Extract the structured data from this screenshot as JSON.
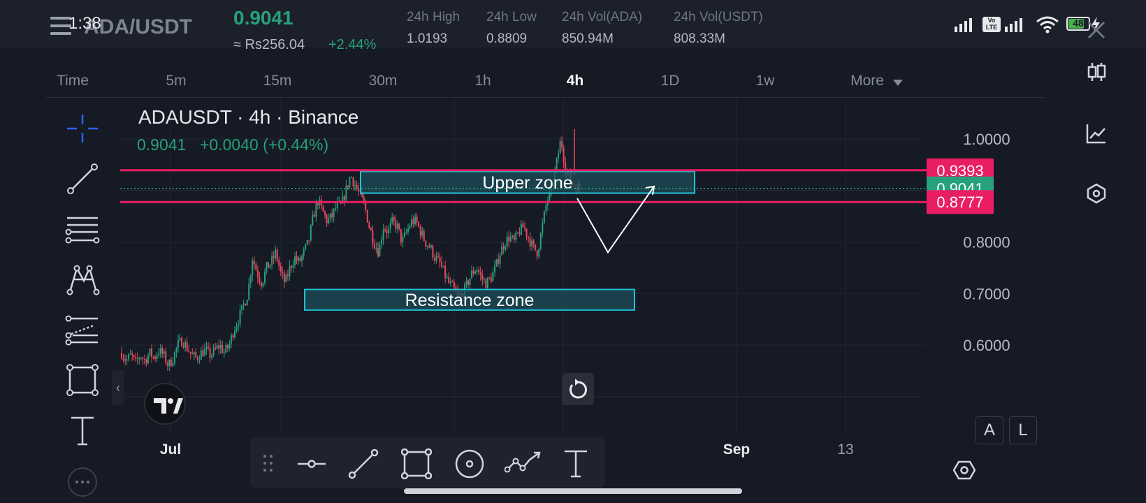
{
  "status_bar": {
    "time": "1:38",
    "battery": "48"
  },
  "ticker": {
    "pair": "ADA/USDT",
    "last_price": "0.9041",
    "fiat_price": "≈ Rs256.04",
    "change_pct": "+2.44%",
    "stats": [
      {
        "label": "24h High",
        "value": "1.0193"
      },
      {
        "label": "24h Low",
        "value": "0.8809"
      },
      {
        "label": "24h Vol(ADA)",
        "value": "850.94M"
      },
      {
        "label": "24h Vol(USDT)",
        "value": "808.33M"
      }
    ]
  },
  "timeframes": [
    "Time",
    "5m",
    "15m",
    "30m",
    "1h",
    "4h",
    "1D",
    "1w",
    "More"
  ],
  "active_timeframe": "4h",
  "chart_header": {
    "title": "ADAUSDT · 4h · Binance",
    "price": "0.9041",
    "change": "+0.0040 (+0.44%)"
  },
  "chart_data": {
    "type": "candlestick",
    "title": "ADAUSDT · 4h · Binance",
    "y_ticks": [
      "1.0000",
      "0.8000",
      "0.7000",
      "0.6000"
    ],
    "y_tick_values": [
      1.0,
      0.8,
      0.7,
      0.6
    ],
    "ylim": [
      0.49,
      1.03
    ],
    "x_ticks": [
      {
        "label": "Jul",
        "bold": true
      },
      {
        "label": "Sep",
        "bold": true
      },
      {
        "label": "13",
        "bold": false
      }
    ],
    "price_labels": [
      {
        "value": 0.9393,
        "text": "0.9393",
        "color": "#e91e63"
      },
      {
        "value": 0.9041,
        "text": "0.9041",
        "color": "#26a17b"
      },
      {
        "value": 0.8777,
        "text": "0.8777",
        "color": "#e91e63"
      }
    ],
    "horizontal_lines": [
      0.9393,
      0.8777
    ],
    "current_price_line": 0.9041,
    "zones": [
      {
        "label": "Upper zone",
        "low": 0.895,
        "high": 0.937
      },
      {
        "label": "Resistance zone",
        "low": 0.668,
        "high": 0.708
      }
    ],
    "close_path": [
      0.585,
      0.57,
      0.58,
      0.565,
      0.58,
      0.57,
      0.585,
      0.575,
      0.59,
      0.58,
      0.56,
      0.575,
      0.6,
      0.61,
      0.595,
      0.58,
      0.575,
      0.585,
      0.59,
      0.58,
      0.59,
      0.6,
      0.585,
      0.6,
      0.63,
      0.65,
      0.675,
      0.7,
      0.77,
      0.74,
      0.72,
      0.75,
      0.76,
      0.78,
      0.74,
      0.72,
      0.75,
      0.77,
      0.76,
      0.78,
      0.8,
      0.85,
      0.88,
      0.86,
      0.84,
      0.85,
      0.87,
      0.87,
      0.9,
      0.93,
      0.91,
      0.89,
      0.87,
      0.83,
      0.8,
      0.78,
      0.83,
      0.82,
      0.84,
      0.83,
      0.8,
      0.82,
      0.84,
      0.84,
      0.82,
      0.8,
      0.79,
      0.77,
      0.76,
      0.74,
      0.72,
      0.71,
      0.69,
      0.7,
      0.72,
      0.74,
      0.75,
      0.73,
      0.72,
      0.73,
      0.75,
      0.78,
      0.8,
      0.81,
      0.8,
      0.82,
      0.83,
      0.81,
      0.79,
      0.78,
      0.83,
      0.88,
      0.9,
      0.95,
      1.0,
      0.94,
      0.92,
      0.91,
      0.9041
    ],
    "projection": [
      {
        "t": 0.0,
        "v": 0.885
      },
      {
        "t": 0.4,
        "v": 0.78
      },
      {
        "t": 1.0,
        "v": 0.908
      }
    ]
  },
  "scale_buttons": [
    "A",
    "L"
  ],
  "colors": {
    "up": "#26a17b",
    "down": "#e8495d",
    "level_line": "#e91e63",
    "zone_border": "#1ec3d6",
    "zone_fill": "#1c4e5a",
    "background": "#161a25"
  },
  "left_toolbar_icons": [
    "crosshair-icon",
    "trendline-icon",
    "fib-icon",
    "pattern-icon",
    "prediction-icon",
    "rectangle-icon",
    "text-icon",
    "more-icon"
  ],
  "right_toolbar_icons": [
    "close-icon",
    "candles-icon",
    "indicators-icon",
    "layers-icon",
    "settings-icon"
  ],
  "float_toolbar_icons": [
    "drag-handle-icon",
    "horizontal-line-icon",
    "line-tool-icon",
    "rectangle-tool-icon",
    "circle-tool-icon",
    "path-tool-icon",
    "text-tool-icon"
  ]
}
